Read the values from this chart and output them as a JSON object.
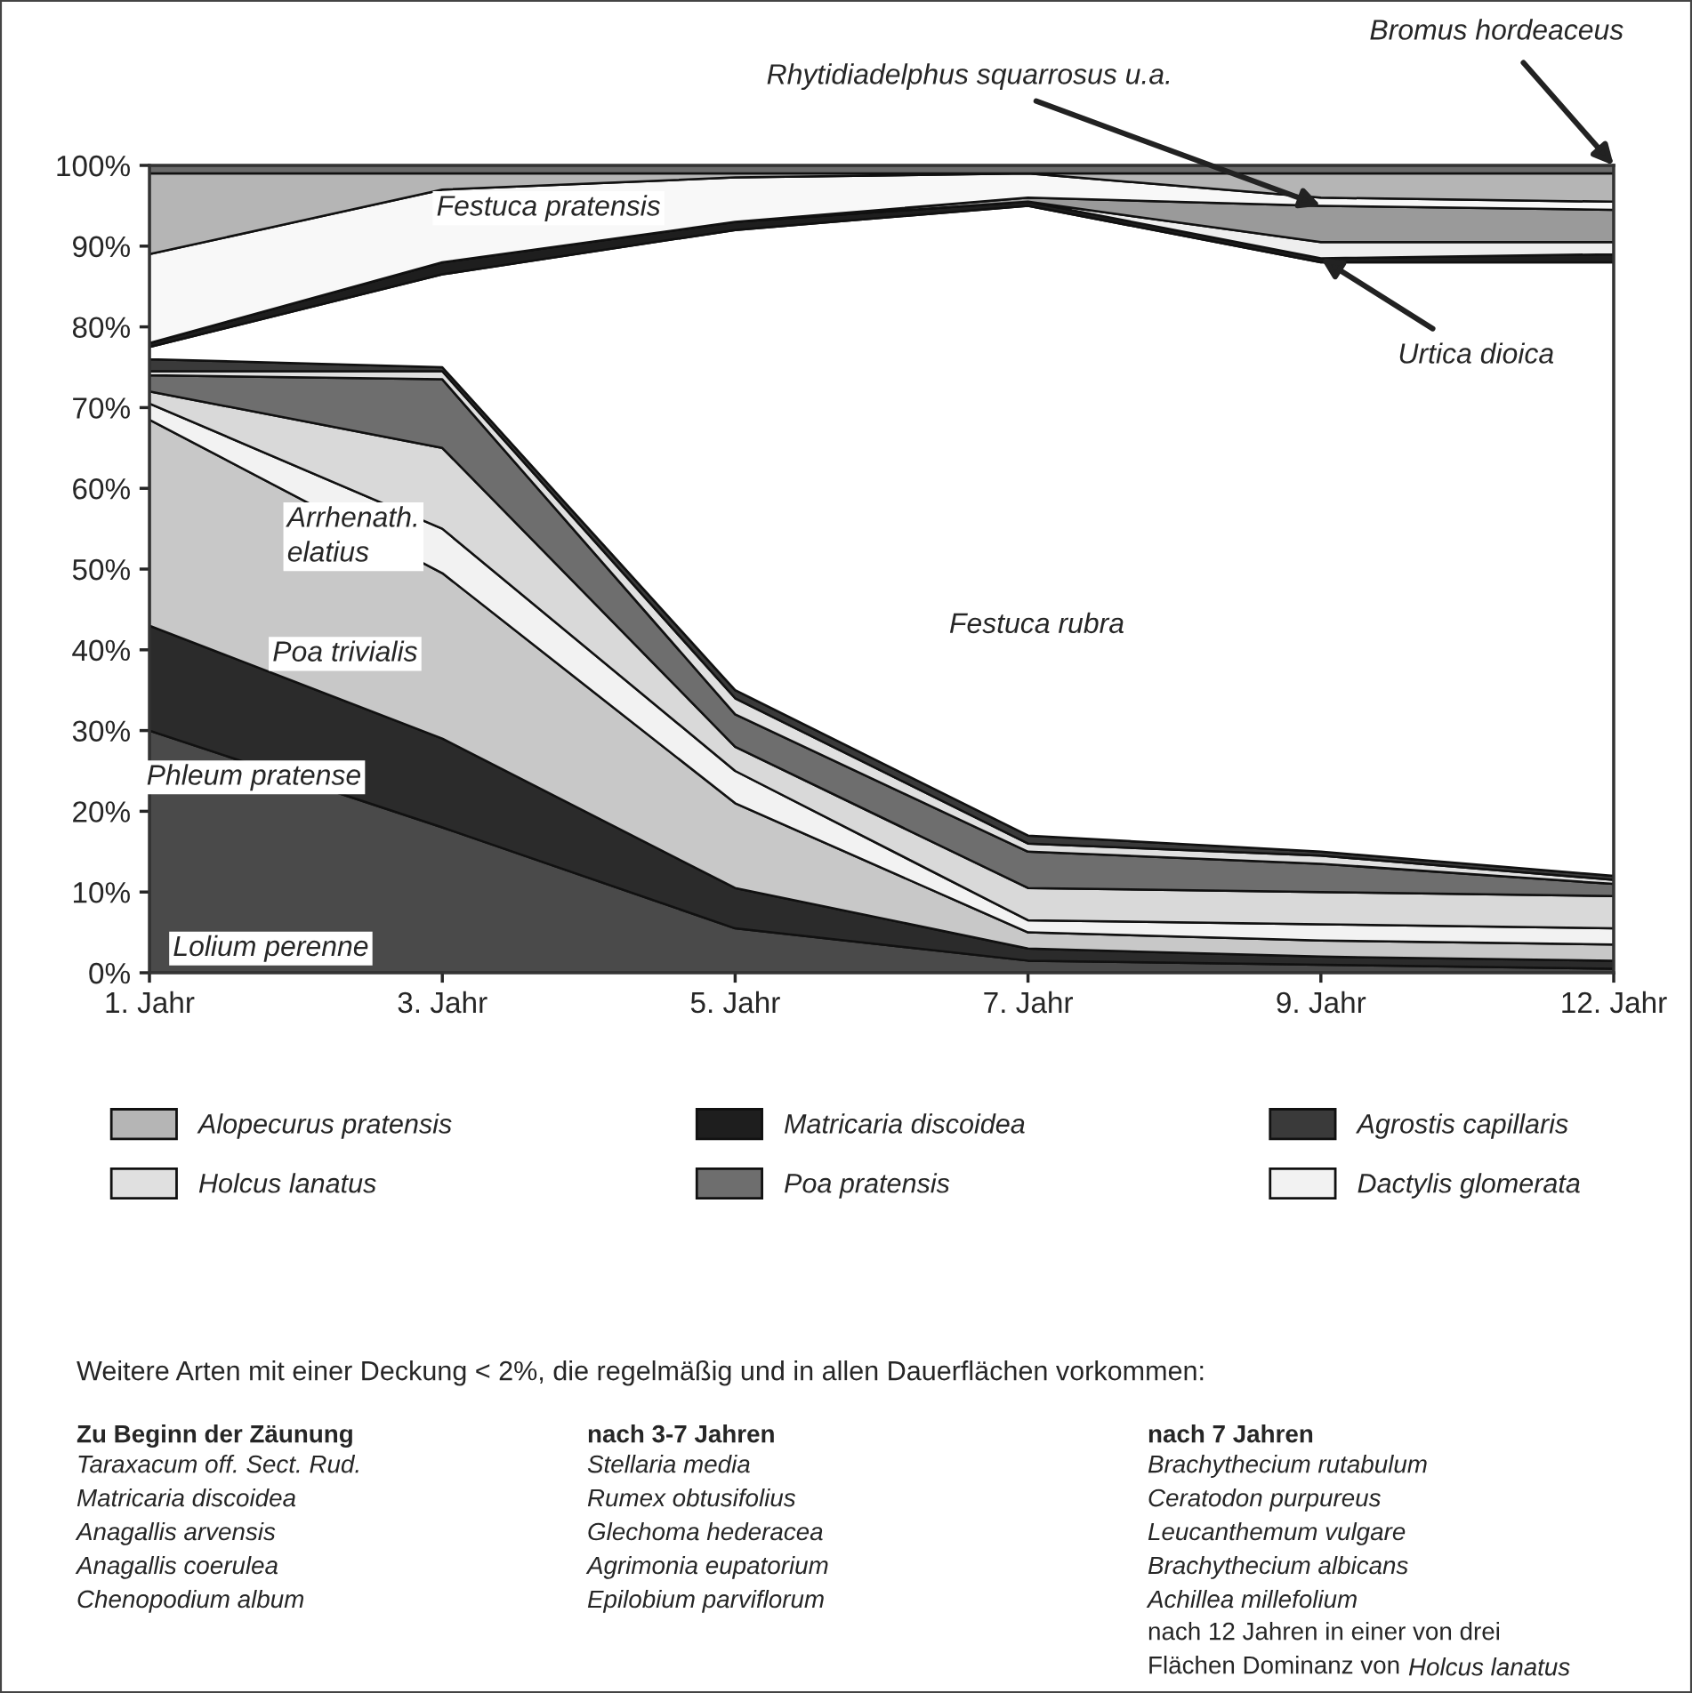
{
  "chart_data": {
    "type": "area",
    "stacked": true,
    "categories": [
      "1. Jahr",
      "3. Jahr",
      "5. Jahr",
      "7. Jahr",
      "9. Jahr",
      "12. Jahr"
    ],
    "ylim": [
      0,
      100
    ],
    "yticks": [
      {
        "value": 0,
        "label": "0%"
      },
      {
        "value": 10,
        "label": "10%"
      },
      {
        "value": 20,
        "label": "20%"
      },
      {
        "value": 30,
        "label": "30%"
      },
      {
        "value": 40,
        "label": "40%"
      },
      {
        "value": 50,
        "label": "50%"
      },
      {
        "value": 60,
        "label": "60%"
      },
      {
        "value": 70,
        "label": "70%"
      },
      {
        "value": 80,
        "label": "80%"
      },
      {
        "value": 90,
        "label": "90%"
      },
      {
        "value": 100,
        "label": "100%"
      }
    ],
    "legend": "bottom",
    "series": [
      {
        "color": "#4a4a4a",
        "values": [
          30,
          18,
          5.5,
          1.5,
          1,
          0.5
        ]
      },
      {
        "color": "#2b2b2b",
        "values": [
          13,
          11,
          5,
          1.5,
          1,
          1
        ]
      },
      {
        "color": "#c8c8c8",
        "values": [
          25.5,
          20.5,
          10.5,
          2,
          2,
          2
        ]
      },
      {
        "name": "Dactylis glomerata",
        "color": "#f2f2f2",
        "values": [
          2,
          5.5,
          4,
          1.5,
          2,
          2
        ]
      },
      {
        "color": "#d9d9d9",
        "values": [
          1.5,
          10,
          3,
          4,
          4,
          4
        ]
      },
      {
        "name": "Poa pratensis",
        "color": "#6e6e6e",
        "values": [
          2,
          8.5,
          4,
          4.5,
          3.5,
          1.5
        ]
      },
      {
        "name": "Holcus lanatus",
        "color": "#e0e0e0",
        "values": [
          0.5,
          1,
          2,
          1,
          1,
          0.5
        ]
      },
      {
        "name": "Agrostis capillaris",
        "color": "#3a3a3a",
        "values": [
          1.5,
          0.5,
          1,
          1,
          0.5,
          0.5
        ]
      },
      {
        "color": "#ffffff",
        "values": [
          1.5,
          11.5,
          57,
          78,
          73,
          76
        ]
      },
      {
        "name": "Matricaria discoidea",
        "color": "#1e1e1e",
        "values": [
          0.5,
          1.5,
          1,
          0.5,
          0.5,
          1
        ]
      },
      {
        "color": "#eeeeee",
        "values": [
          0,
          0,
          0,
          0,
          2,
          1.5
        ]
      },
      {
        "color": "#9a9a9a",
        "values": [
          0,
          0,
          0,
          0.5,
          4.5,
          4
        ]
      },
      {
        "color": "#f8f8f8",
        "values": [
          11,
          9,
          5.5,
          3,
          1,
          1
        ]
      },
      {
        "name": "Alopecurus pratensis",
        "color": "#b5b5b5",
        "values": [
          10,
          2,
          0.5,
          0,
          3,
          3.5
        ]
      },
      {
        "color": "#6b6b6b",
        "values": [
          1,
          1,
          1,
          1,
          1,
          1
        ]
      }
    ],
    "annotations": [
      {
        "text": "Rhytidiadelphus squarrosus u.a.",
        "x": "9. Jahr",
        "y": 95
      },
      {
        "text": "Bromus hordeaceus",
        "x": "12. Jahr",
        "y": 100
      },
      {
        "text": "Urtica dioica",
        "x": "9. Jahr",
        "y": 88.5
      },
      "Lolium perenne",
      "Phleum pratense",
      "Poa trivialis",
      "Arrhenath.\nelatius",
      "Festuca pratensis",
      "Festuca rubra",
      "Weitere Arten mit einer Deckung < 2%, die regelmäßig und in allen Dauerflächen vorkommen:",
      "Zu Beginn der Zäunung",
      "Taraxacum off. Sect. Rud.\nMatricaria discoidea\nAnagallis arvensis\nAnagallis coerulea\nChenopodium album",
      "nach 3-7 Jahren",
      "Stellaria media\nRumex obtusifolius\nGlechoma hederacea\nAgrimonia eupatorium\nEpilobium parviflorum",
      "nach 7 Jahren",
      "Brachythecium rutabulum\nCeratodon purpureus\nLeucanthemum vulgare\nBrachythecium albicans\nAchillea millefolium",
      "nach 12 Jahren in einer von drei",
      "Flächen Dominanz von",
      "Holcus lanatus"
    ]
  }
}
